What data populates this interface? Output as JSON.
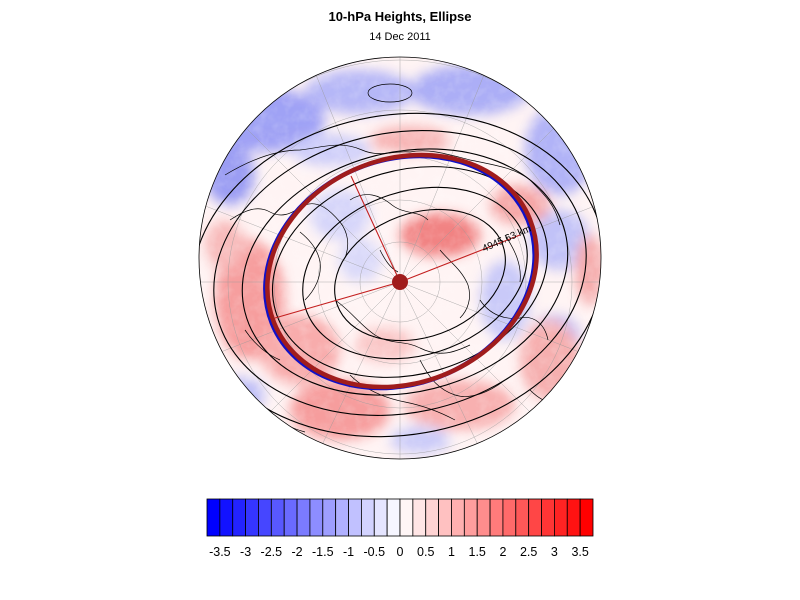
{
  "title": "10-hPa Heights, Ellipse",
  "date": "14 Dec 2011",
  "distance_label": "4945.63 km",
  "colorbar": {
    "ticks": [
      "-3.5",
      "-3",
      "-2.5",
      "-2",
      "-1.5",
      "-1",
      "-0.5",
      "0",
      "0.5",
      "1",
      "1.5",
      "2",
      "2.5",
      "3",
      "3.5"
    ],
    "min": -3.75,
    "max": 3.75,
    "step": 0.25,
    "colors": {
      "negative": "#0000ff",
      "neutral": "#ffffff",
      "positive": "#ff0000"
    }
  },
  "map": {
    "projection": "north polar stereographic",
    "ellipse_color": "#a01c1c",
    "contour_color": "#000000",
    "coastline_color": "#000000",
    "grid_color": "#9a9a9a"
  }
}
